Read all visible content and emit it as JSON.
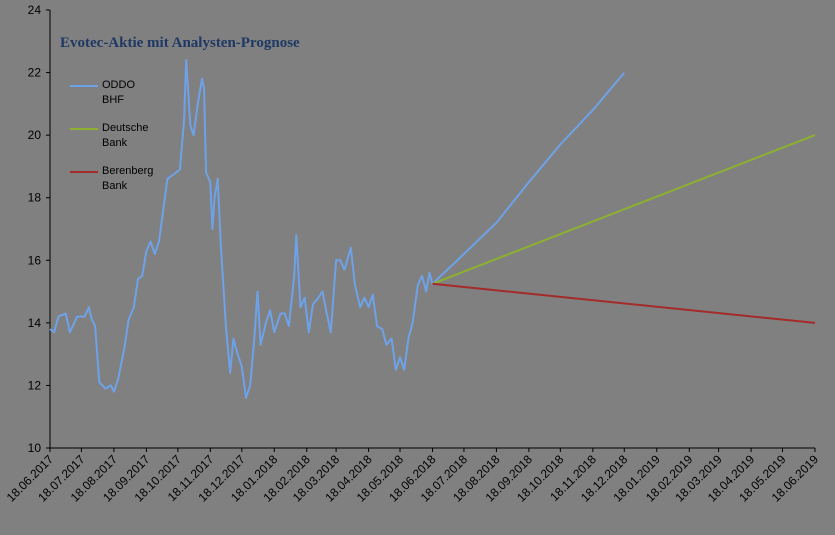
{
  "chart_data": {
    "type": "line",
    "title": "Evotec-Aktie mit Analysten-Prognose",
    "xlim": [
      "18.06.2017",
      "18.06.2019"
    ],
    "xticks": [
      "18.06.2017",
      "18.07.2017",
      "18.08.2017",
      "18.09.2017",
      "18.10.2017",
      "18.11.2017",
      "18.12.2017",
      "18.01.2018",
      "18.02.2018",
      "18.03.2018",
      "18.04.2018",
      "18.05.2018",
      "18.06.2018",
      "18.07.2018",
      "18.08.2018",
      "18.09.2018",
      "18.10.2018",
      "18.11.2018",
      "18.12.2018",
      "18.01.2019",
      "18.02.2019",
      "18.03.2019",
      "18.04.2019",
      "18.05.2019",
      "18.06.2019"
    ],
    "ylim": [
      10,
      24
    ],
    "yticks": [
      10,
      12,
      14,
      16,
      18,
      20,
      22,
      24
    ],
    "grid": false,
    "series": [
      {
        "name": "ODDO BHF",
        "color": "#6ea2e8",
        "x": [
          "18.06.2017",
          "22.06.2017",
          "26.06.2017",
          "03.07.2017",
          "07.07.2017",
          "14.07.2017",
          "21.07.2017",
          "25.07.2017",
          "28.07.2017",
          "31.07.2017",
          "04.08.2017",
          "10.08.2017",
          "15.08.2017",
          "18.08.2017",
          "22.08.2017",
          "28.08.2017",
          "01.09.2017",
          "06.09.2017",
          "10.09.2017",
          "14.09.2017",
          "18.09.2017",
          "22.09.2017",
          "26.09.2017",
          "30.09.2017",
          "04.10.2017",
          "08.10.2017",
          "12.10.2017",
          "16.10.2017",
          "20.10.2017",
          "24.10.2017",
          "26.10.2017",
          "30.10.2017",
          "02.11.2017",
          "06.11.2017",
          "10.11.2017",
          "12.11.2017",
          "14.11.2017",
          "18.11.2017",
          "20.11.2017",
          "22.11.2017",
          "25.11.2017",
          "28.11.2017",
          "03.12.2017",
          "07.12.2017",
          "10.12.2017",
          "14.12.2017",
          "18.12.2017",
          "22.12.2017",
          "26.12.2017",
          "30.12.2017",
          "02.01.2018",
          "05.01.2018",
          "10.01.2018",
          "14.01.2018",
          "18.01.2018",
          "24.01.2018",
          "28.01.2018",
          "01.02.2018",
          "06.02.2018",
          "08.02.2018",
          "12.02.2018",
          "16.02.2018",
          "20.02.2018",
          "24.02.2018",
          "01.03.2018",
          "05.03.2018",
          "09.03.2018",
          "13.03.2018",
          "18.03.2018",
          "22.03.2018",
          "26.03.2018",
          "01.04.2018",
          "05.04.2018",
          "10.04.2018",
          "14.04.2018",
          "18.04.2018",
          "22.04.2018",
          "26.04.2018",
          "01.05.2018",
          "05.05.2018",
          "10.05.2018",
          "14.05.2018",
          "18.05.2018",
          "22.05.2018",
          "26.05.2018",
          "30.05.2018",
          "04.06.2018",
          "08.06.2018",
          "12.06.2018",
          "15.06.2018",
          "18.06.2018",
          "18.07.2018",
          "18.08.2018",
          "18.09.2018",
          "18.10.2018",
          "18.11.2018",
          "18.12.2018"
        ],
        "values": [
          13.8,
          13.7,
          14.2,
          14.3,
          13.7,
          14.2,
          14.2,
          14.5,
          14.1,
          13.9,
          12.1,
          11.9,
          12.0,
          11.8,
          12.2,
          13.2,
          14.1,
          14.5,
          15.4,
          15.5,
          16.3,
          16.6,
          16.2,
          16.6,
          17.6,
          18.6,
          18.7,
          18.8,
          18.9,
          20.5,
          22.4,
          20.3,
          20.0,
          21.0,
          21.8,
          21.5,
          18.8,
          18.5,
          17.0,
          18.0,
          18.6,
          16.5,
          13.8,
          12.4,
          13.5,
          13.0,
          12.6,
          11.6,
          12.0,
          13.5,
          15.0,
          13.3,
          14.0,
          14.4,
          13.7,
          14.3,
          14.3,
          13.9,
          15.5,
          16.8,
          14.5,
          14.8,
          13.7,
          14.6,
          14.8,
          15.0,
          14.3,
          13.7,
          16.0,
          16.0,
          15.7,
          16.4,
          15.2,
          14.5,
          14.8,
          14.5,
          14.9,
          13.9,
          13.8,
          13.3,
          13.5,
          12.5,
          12.9,
          12.5,
          13.5,
          14.0,
          15.2,
          15.5,
          15.0,
          15.6,
          15.25,
          16.2,
          17.2,
          18.5,
          19.7,
          20.8,
          22.0
        ]
      },
      {
        "name": "Deutsche Bank",
        "color": "#8db030",
        "x": [
          "18.06.2018",
          "18.06.2019"
        ],
        "values": [
          15.25,
          20.0
        ]
      },
      {
        "name": "Berenberg Bank",
        "color": "#a52a2a",
        "x": [
          "18.06.2018",
          "18.06.2019"
        ],
        "values": [
          15.25,
          14.0
        ]
      }
    ]
  }
}
